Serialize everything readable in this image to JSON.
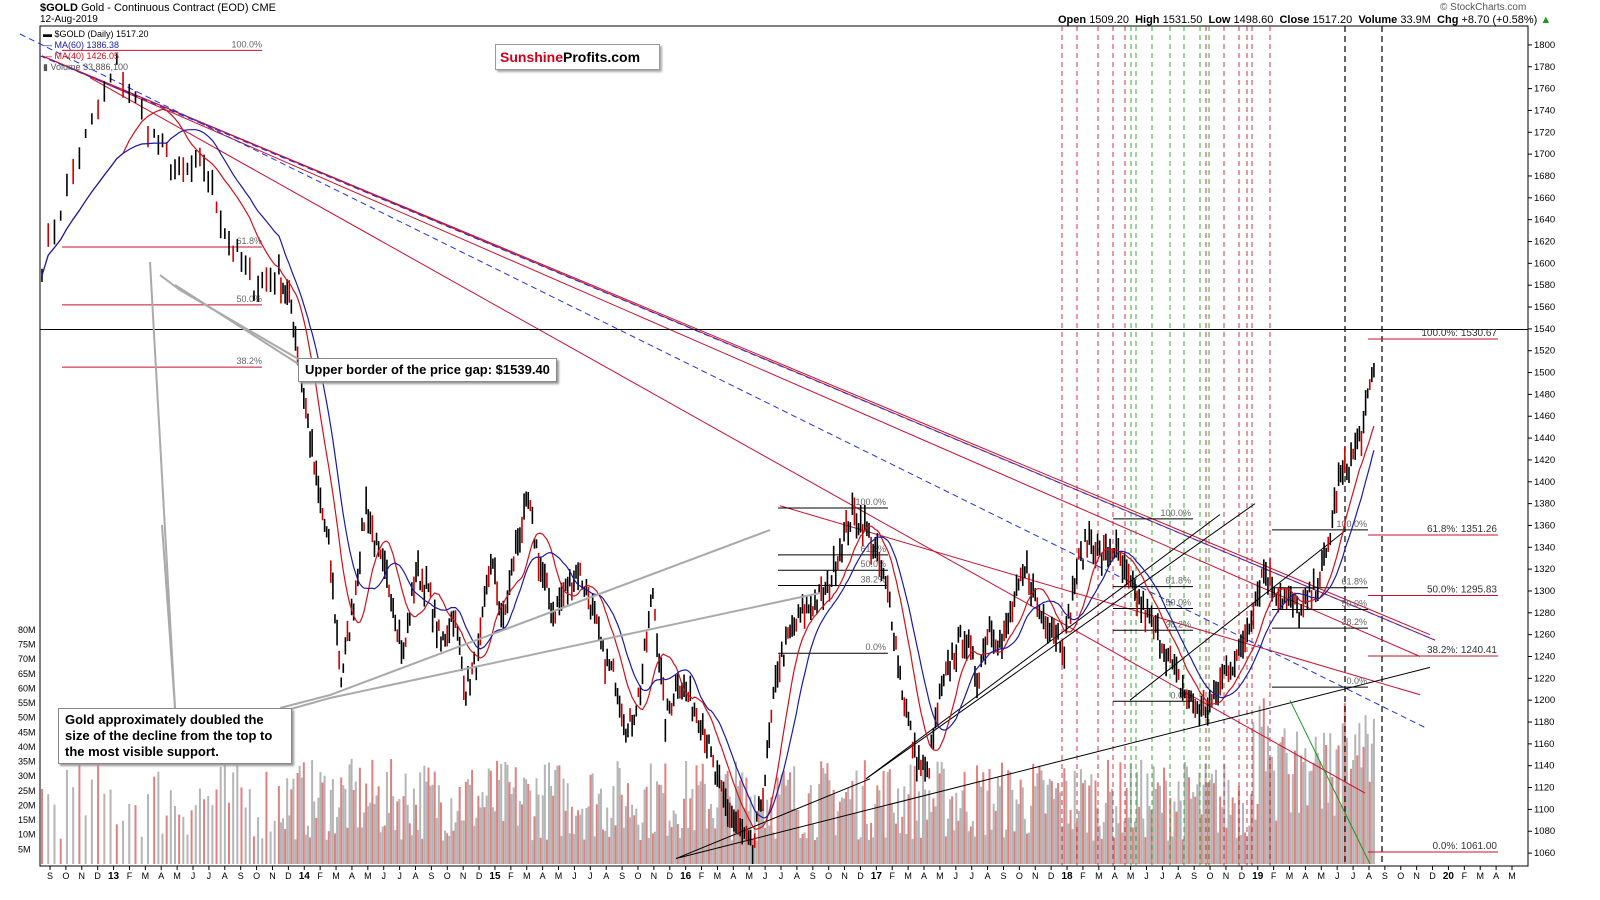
{
  "header": {
    "symbol": "$GOLD",
    "description": "Gold - Continuous Contract (EOD)",
    "exchange": "CME",
    "date": "12-Aug-2019",
    "open_label": "Open",
    "open": "1509.20",
    "high_label": "High",
    "high": "1531.50",
    "low_label": "Low",
    "low": "1498.60",
    "close_label": "Close",
    "close": "1517.20",
    "volume_label": "Volume",
    "volume": "33.9M",
    "chg_label": "Chg",
    "chg": "+8.70 (+0.58%)",
    "watermark": "© StockCharts.com"
  },
  "legend": {
    "price": "$GOLD (Daily) 1517.20",
    "ma60": "MA(60) 1386.38",
    "ma40": "MA(40) 1426.05",
    "volume": "Volume 33,886,100"
  },
  "logo": {
    "part1": "Sunshine",
    "part2": "Profits.com"
  },
  "callouts": {
    "gap": "Upper border of the price gap: $1539.40",
    "doubled": "Gold approximately doubled the size of the decline from the top to the most visible support."
  },
  "colors": {
    "price": "#000000",
    "ma60": "#1a1aaa",
    "ma40": "#d0101b",
    "fib": "#c8102e",
    "accent_logo": "#d0001b",
    "volume_gray": "#b5b5b5",
    "volume_red": "#e08080",
    "support_green": "#1a9a1a"
  },
  "chart_data": {
    "type": "line",
    "title": "$GOLD Gold - Continuous Contract (EOD)",
    "y_axis": {
      "ticks": [
        1060,
        1080,
        1100,
        1120,
        1140,
        1160,
        1180,
        1200,
        1220,
        1240,
        1260,
        1280,
        1300,
        1320,
        1340,
        1360,
        1380,
        1400,
        1420,
        1440,
        1460,
        1480,
        1500,
        1520,
        1540,
        1560,
        1580,
        1600,
        1620,
        1640,
        1660,
        1680,
        1700,
        1720,
        1740,
        1760,
        1780,
        1800
      ],
      "range": [
        1050,
        1810
      ]
    },
    "volume_axis": {
      "labels": [
        "5M",
        "10M",
        "15M",
        "20M",
        "25M",
        "30M",
        "35M",
        "40M",
        "45M",
        "50M",
        "55M",
        "60M",
        "65M",
        "70M",
        "75M",
        "80M"
      ],
      "range": [
        0,
        82
      ]
    },
    "x_axis": {
      "labels": [
        "S",
        "O",
        "N",
        "D",
        "13",
        "F",
        "M",
        "A",
        "M",
        "J",
        "J",
        "A",
        "S",
        "O",
        "N",
        "D",
        "14",
        "F",
        "M",
        "A",
        "M",
        "J",
        "J",
        "A",
        "S",
        "O",
        "N",
        "D",
        "15",
        "F",
        "M",
        "A",
        "M",
        "J",
        "J",
        "A",
        "S",
        "O",
        "N",
        "D",
        "16",
        "F",
        "M",
        "A",
        "M",
        "J",
        "J",
        "A",
        "S",
        "O",
        "N",
        "D",
        "17",
        "F",
        "M",
        "A",
        "M",
        "J",
        "J",
        "A",
        "S",
        "O",
        "N",
        "D",
        "18",
        "F",
        "M",
        "A",
        "M",
        "J",
        "J",
        "A",
        "S",
        "O",
        "N",
        "D",
        "19",
        "F",
        "M",
        "A",
        "M",
        "J",
        "J",
        "A",
        "S",
        "O",
        "N",
        "D",
        "20",
        "F",
        "M",
        "A",
        "M"
      ]
    },
    "price_keypoints": [
      [
        0,
        1600
      ],
      [
        3,
        1700
      ],
      [
        6,
        1780
      ],
      [
        9,
        1715
      ],
      [
        11,
        1680
      ],
      [
        13,
        1690
      ],
      [
        15,
        1620
      ],
      [
        17,
        1580
      ],
      [
        19,
        1590
      ],
      [
        20,
        1560
      ],
      [
        21,
        1480
      ],
      [
        22,
        1400
      ],
      [
        23,
        1340
      ],
      [
        24,
        1220
      ],
      [
        25,
        1290
      ],
      [
        26,
        1380
      ],
      [
        27,
        1330
      ],
      [
        28,
        1300
      ],
      [
        29,
        1240
      ],
      [
        30,
        1320
      ],
      [
        31,
        1300
      ],
      [
        32,
        1250
      ],
      [
        33,
        1280
      ],
      [
        34,
        1210
      ],
      [
        35,
        1240
      ],
      [
        36,
        1330
      ],
      [
        37,
        1270
      ],
      [
        38,
        1340
      ],
      [
        39,
        1380
      ],
      [
        40,
        1320
      ],
      [
        41,
        1280
      ],
      [
        42,
        1300
      ],
      [
        43,
        1320
      ],
      [
        44,
        1290
      ],
      [
        45,
        1240
      ],
      [
        46,
        1220
      ],
      [
        47,
        1170
      ],
      [
        48,
        1210
      ],
      [
        49,
        1300
      ],
      [
        50,
        1180
      ],
      [
        51,
        1220
      ],
      [
        52,
        1200
      ],
      [
        53,
        1180
      ],
      [
        54,
        1130
      ],
      [
        55,
        1100
      ],
      [
        56,
        1080
      ],
      [
        57,
        1060
      ],
      [
        58,
        1130
      ],
      [
        59,
        1230
      ],
      [
        60,
        1260
      ],
      [
        61,
        1280
      ],
      [
        62,
        1290
      ],
      [
        63,
        1300
      ],
      [
        64,
        1340
      ],
      [
        65,
        1370
      ],
      [
        66,
        1360
      ],
      [
        67,
        1330
      ],
      [
        68,
        1290
      ],
      [
        69,
        1210
      ],
      [
        70,
        1150
      ],
      [
        71,
        1130
      ],
      [
        72,
        1200
      ],
      [
        73,
        1240
      ],
      [
        74,
        1260
      ],
      [
        75,
        1220
      ],
      [
        76,
        1270
      ],
      [
        77,
        1250
      ],
      [
        78,
        1290
      ],
      [
        79,
        1320
      ],
      [
        80,
        1280
      ],
      [
        81,
        1270
      ],
      [
        82,
        1250
      ],
      [
        83,
        1320
      ],
      [
        84,
        1350
      ],
      [
        85,
        1330
      ],
      [
        86,
        1340
      ],
      [
        87,
        1310
      ],
      [
        88,
        1290
      ],
      [
        89,
        1270
      ],
      [
        90,
        1250
      ],
      [
        91,
        1220
      ],
      [
        92,
        1200
      ],
      [
        93,
        1190
      ],
      [
        94,
        1200
      ],
      [
        95,
        1230
      ],
      [
        96,
        1240
      ],
      [
        97,
        1280
      ],
      [
        98,
        1320
      ],
      [
        99,
        1300
      ],
      [
        100,
        1290
      ],
      [
        101,
        1280
      ],
      [
        102,
        1300
      ],
      [
        103,
        1330
      ],
      [
        104,
        1400
      ],
      [
        105,
        1420
      ],
      [
        106,
        1450
      ],
      [
        107,
        1520
      ]
    ],
    "horizontal_levels": [
      {
        "label": "",
        "value": 1539.4
      },
      {
        "label": "100.0%: 1530.67",
        "value": 1530.67
      },
      {
        "label": "61.8%: 1351.26",
        "value": 1351.26
      },
      {
        "label": "50.0%: 1295.83",
        "value": 1295.83
      },
      {
        "label": "38.2%: 1240.41",
        "value": 1240.41
      },
      {
        "label": "0.0%: 1061.00",
        "value": 1061.0
      }
    ],
    "fib_left": [
      {
        "label": "100.0%",
        "value": 1795
      },
      {
        "label": "61.8%",
        "value": 1615
      },
      {
        "label": "50.0%",
        "value": 1562
      },
      {
        "label": "38.2%",
        "value": 1505
      }
    ],
    "fib_mid": [
      {
        "label": "100.0%",
        "value": 1376
      },
      {
        "label": "61.8%",
        "value": 1333
      },
      {
        "label": "50.0%",
        "value": 1319
      },
      {
        "label": "38.2%",
        "value": 1305
      },
      {
        "label": "0.0%",
        "value": 1243
      }
    ],
    "fib_right": [
      {
        "label": "100.0%",
        "value": 1366
      },
      {
        "label": "61.8%",
        "value": 1304
      },
      {
        "label": "50.0%",
        "value": 1284
      },
      {
        "label": "38.2%",
        "value": 1264
      },
      {
        "label": "0.0%",
        "value": 1199
      }
    ],
    "fib_right2": [
      {
        "label": "100.0%",
        "value": 1356
      },
      {
        "label": "61.8%",
        "value": 1303
      },
      {
        "label": "50.0%",
        "value": 1283
      },
      {
        "label": "38.2%",
        "value": 1266
      },
      {
        "label": "0.0%",
        "value": 1212
      }
    ],
    "legend_placement": "top-left",
    "grid": false
  }
}
